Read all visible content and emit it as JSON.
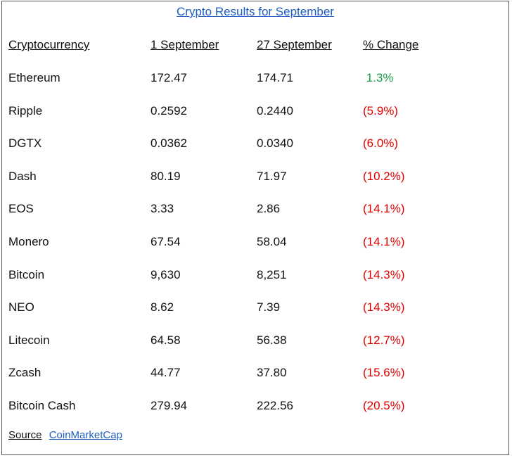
{
  "title": "Crypto Results for September",
  "headers": [
    "Cryptocurrency",
    "1 September",
    "27 September",
    "% Change"
  ],
  "rows": [
    {
      "name": "Ethereum",
      "sep1": "172.47",
      "sep27": "174.71",
      "change": " 1.3%",
      "trend": "up"
    },
    {
      "name": "Ripple",
      "sep1": "0.2592",
      "sep27": "0.2440",
      "change": "(5.9%)",
      "trend": "down"
    },
    {
      "name": "DGTX",
      "sep1": "0.0362",
      "sep27": "0.0340",
      "change": "(6.0%)",
      "trend": "down"
    },
    {
      "name": "Dash",
      "sep1": "80.19",
      "sep27": "71.97",
      "change": "(10.2%)",
      "trend": "down"
    },
    {
      "name": "EOS",
      "sep1": "3.33",
      "sep27": "2.86",
      "change": "(14.1%)",
      "trend": "down"
    },
    {
      "name": "Monero",
      "sep1": "67.54",
      "sep27": "58.04",
      "change": "(14.1%)",
      "trend": "down"
    },
    {
      "name": "Bitcoin",
      "sep1": "9,630",
      "sep27": "8,251",
      "change": "(14.3%)",
      "trend": "down"
    },
    {
      "name": "NEO",
      "sep1": "8.62",
      "sep27": "7.39",
      "change": "(14.3%)",
      "trend": "down"
    },
    {
      "name": "Litecoin",
      "sep1": "64.58",
      "sep27": "56.38",
      "change": "(12.7%)",
      "trend": "down"
    },
    {
      "name": "Zcash",
      "sep1": "44.77",
      "sep27": "37.80",
      "change": "(15.6%)",
      "trend": "down"
    },
    {
      "name": "Bitcoin Cash",
      "sep1": "279.94",
      "sep27": "222.56",
      "change": "(20.5%)",
      "trend": "down"
    }
  ],
  "source": {
    "label": "Source",
    "link": "CoinMarketCap"
  },
  "colors": {
    "title": "#1f5fbf",
    "positive": "#1a9c4a",
    "negative": "#e00000",
    "link": "#1f5fbf"
  }
}
